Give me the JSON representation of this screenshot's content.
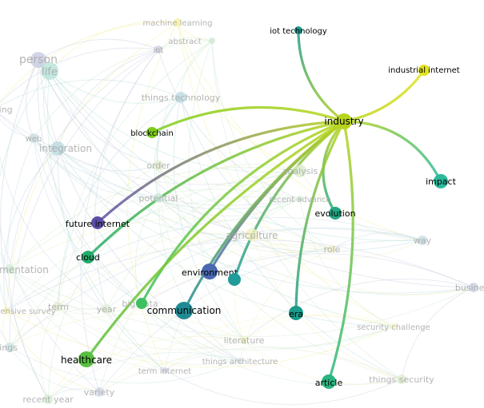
{
  "focus_node": "industry",
  "highlighted_nodes": [
    {
      "label": "industry",
      "color": "#b8d41a"
    },
    {
      "label": "iot technology",
      "color": "#1a9a8a"
    },
    {
      "label": "industrial internet",
      "color": "#e4e21c"
    },
    {
      "label": "blockchain",
      "color": "#7ccc1c"
    },
    {
      "label": "impact",
      "color": "#2cb99a"
    },
    {
      "label": "evolution",
      "color": "#22a884"
    },
    {
      "label": "future internet",
      "color": "#5a4ea6"
    },
    {
      "label": "cloud",
      "color": "#22ab6a"
    },
    {
      "label": "environment",
      "color": "#4a68b0"
    },
    {
      "label": "",
      "color": "#1f9c9a"
    },
    {
      "label": "communication",
      "color": "#1f8a94"
    },
    {
      "label": "",
      "color": "#3cc060"
    },
    {
      "label": "era",
      "color": "#1a9b8a"
    },
    {
      "label": "healthcare",
      "color": "#58c040"
    },
    {
      "label": "article",
      "color": "#2ab580"
    }
  ],
  "faded_nodes": [
    {
      "label": "machine learning",
      "color": "#f5f0a0"
    },
    {
      "label": "abstract",
      "color": "#cfe8d4"
    },
    {
      "label": "iot",
      "color": "#ccd0e4"
    },
    {
      "label": "person",
      "color": "#c8cce0"
    },
    {
      "label": "life",
      "color": "#b8e4d8"
    },
    {
      "label": "things technology",
      "color": "#bcdbe0"
    },
    {
      "label": "ting",
      "color": "#d0d8e8"
    },
    {
      "label": "web",
      "color": "#c8dde0"
    },
    {
      "label": "integration",
      "color": "#bcd9de"
    },
    {
      "label": "order",
      "color": "#e2eccc"
    },
    {
      "label": "analysis",
      "color": "#d8ecc8"
    },
    {
      "label": "potential",
      "color": "#cce8d8"
    },
    {
      "label": "recent advance",
      "color": "#d4ecd4"
    },
    {
      "label": "agriculture",
      "color": "#f5f0c0"
    },
    {
      "label": "way",
      "color": "#c8dce4"
    },
    {
      "label": "role",
      "color": "#f0f0c8"
    },
    {
      "label": "mentation",
      "color": "#d4ecd8"
    },
    {
      "label": "business m",
      "color": "#ccd2e4"
    },
    {
      "label": "ensive survey",
      "color": "#f5f0a8"
    },
    {
      "label": "term",
      "color": "#e0ecd0"
    },
    {
      "label": "year",
      "color": "#e0ecd4"
    },
    {
      "label": "big data",
      "color": "#d0ecd8"
    },
    {
      "label": "security challenge",
      "color": "#f8f4c8"
    },
    {
      "label": "literature",
      "color": "#f0f0c8"
    },
    {
      "label": "things",
      "color": "#cce4e4"
    },
    {
      "label": "things architecture",
      "color": "#d4e4e8"
    },
    {
      "label": "term internet",
      "color": "#d4d8e8"
    },
    {
      "label": "things security",
      "color": "#dcecd0"
    },
    {
      "label": "variety",
      "color": "#d4d8e8"
    },
    {
      "label": "recent year",
      "color": "#d4ecd4"
    }
  ]
}
